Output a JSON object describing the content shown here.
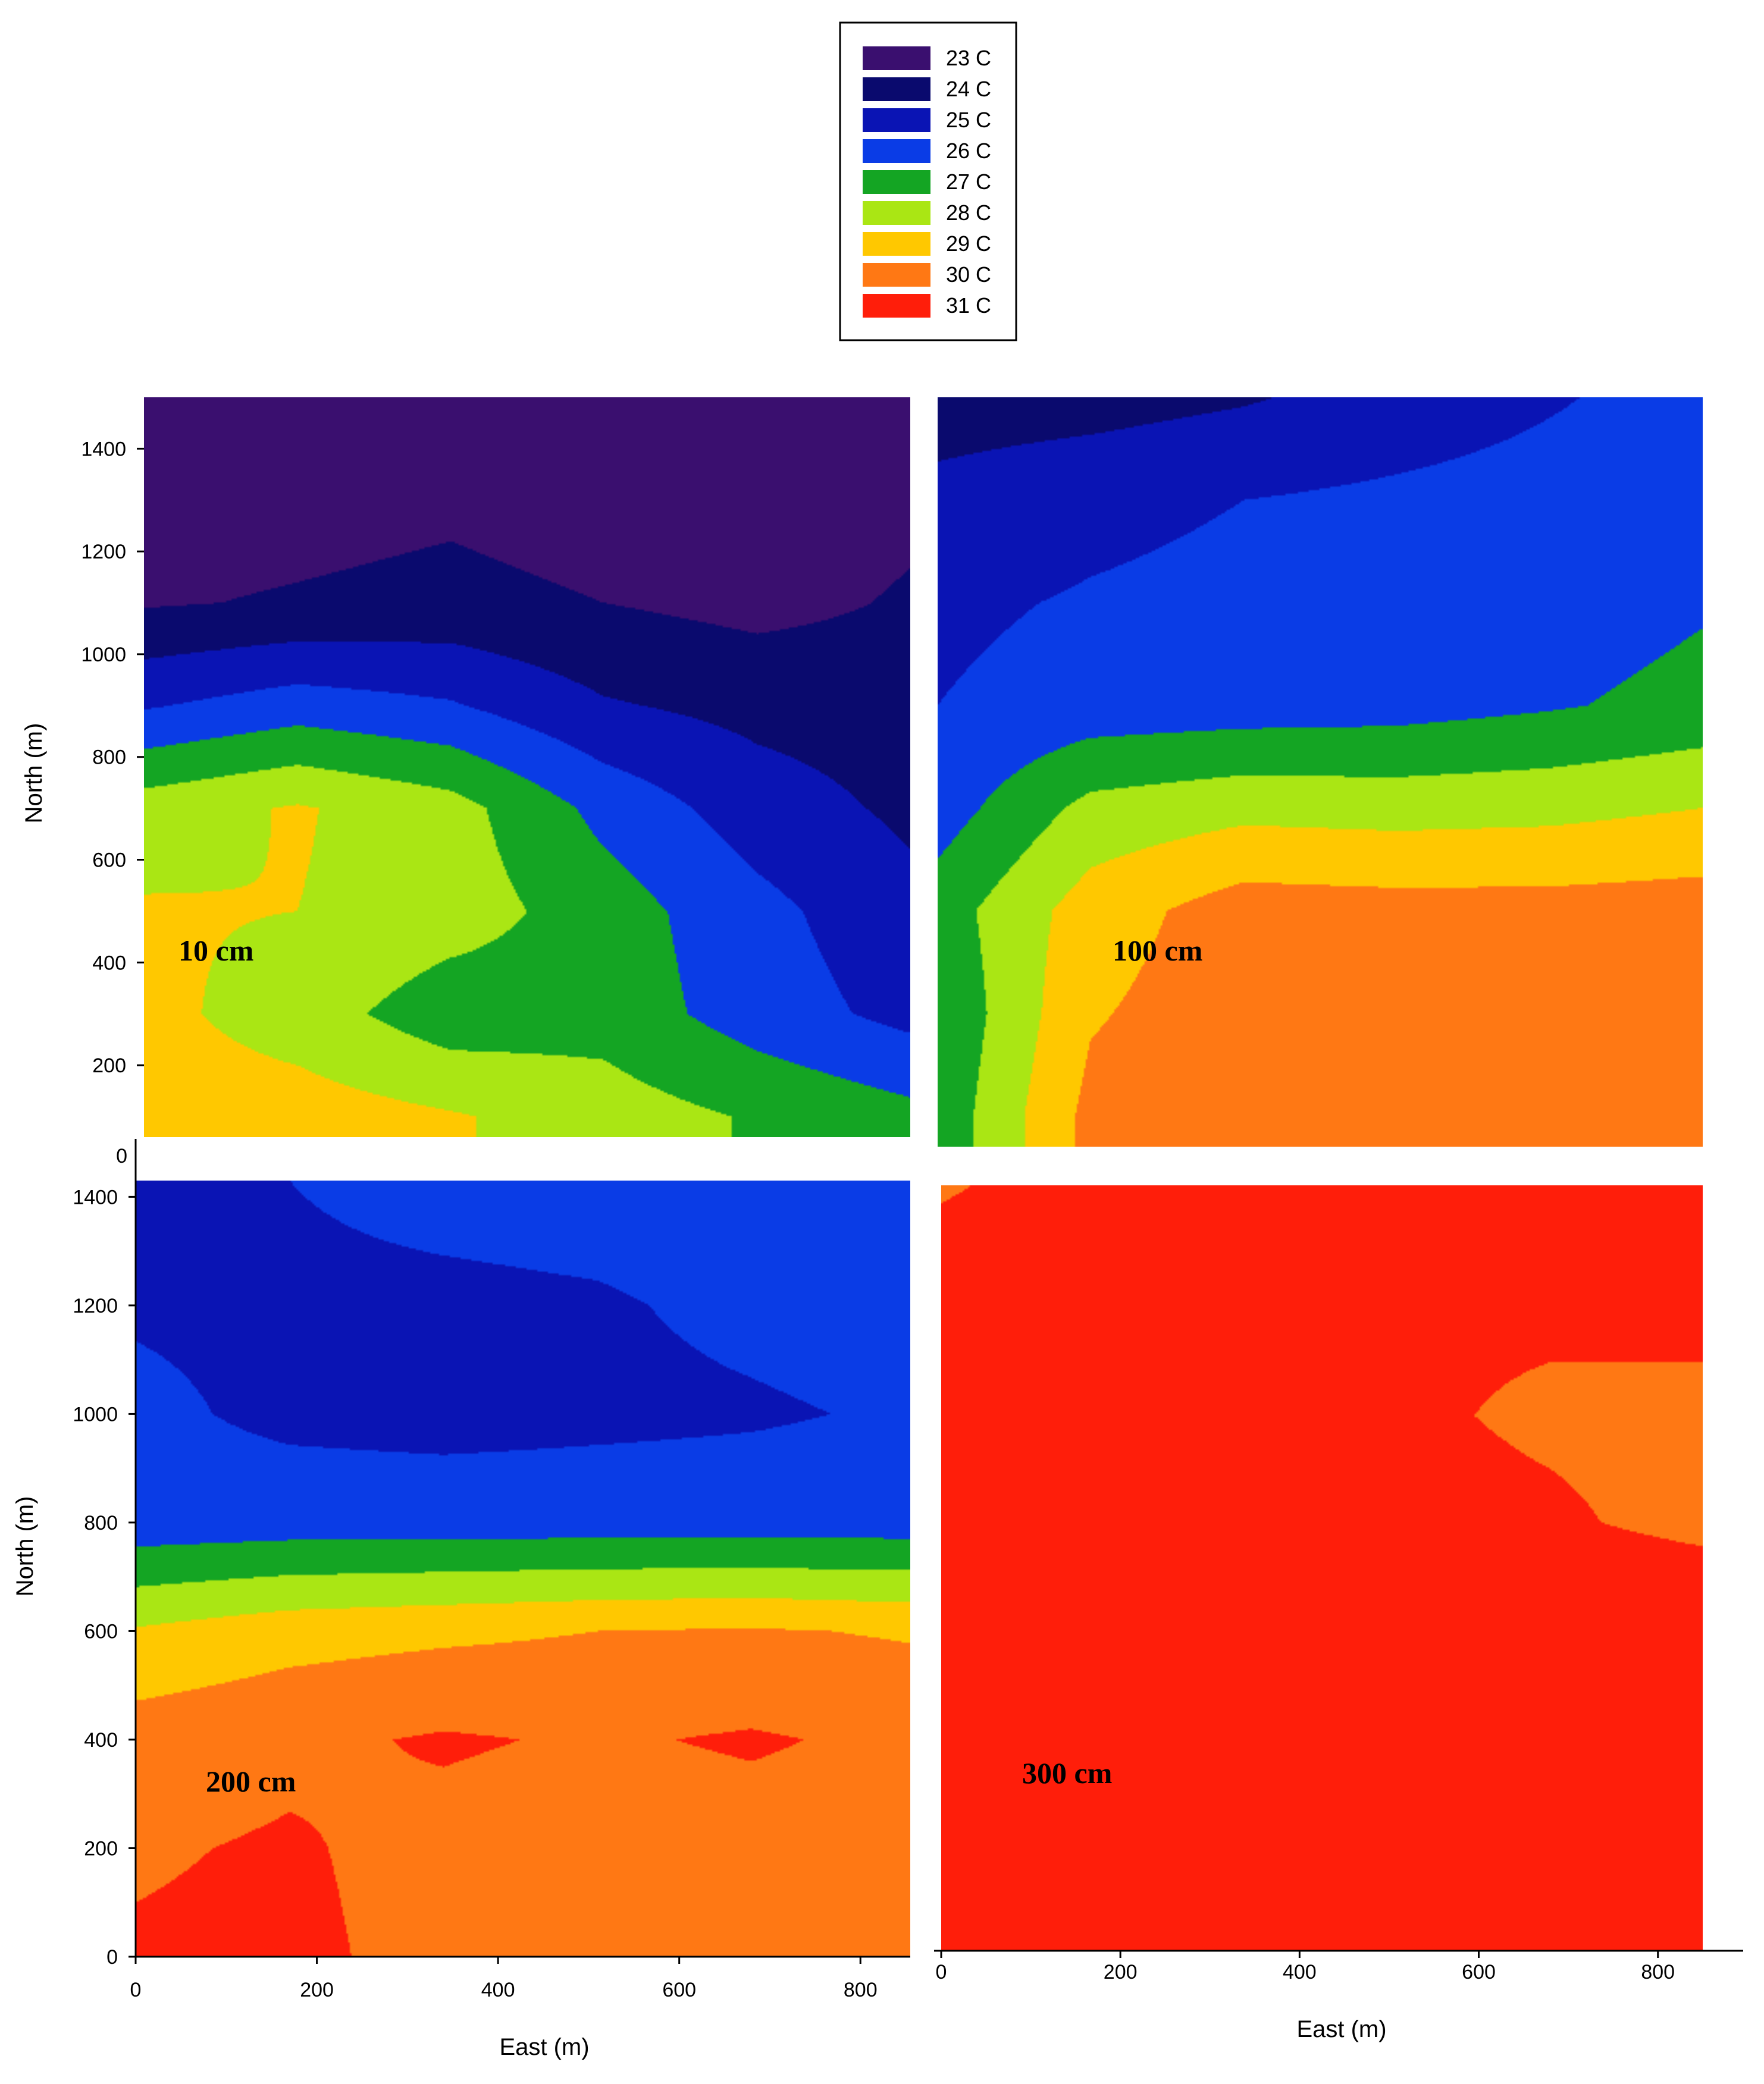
{
  "legend": {
    "placement": "top-center",
    "entries": [
      {
        "label": "23 C",
        "color": "#3a0f6f"
      },
      {
        "label": "24 C",
        "color": "#0a0a6e"
      },
      {
        "label": "25 C",
        "color": "#0a14b4"
      },
      {
        "label": "26 C",
        "color": "#0a3ce6"
      },
      {
        "label": "27 C",
        "color": "#14a523"
      },
      {
        "label": "28 C",
        "color": "#aae614"
      },
      {
        "label": "29 C",
        "color": "#ffc800"
      },
      {
        "label": "30 C",
        "color": "#ff7814"
      },
      {
        "label": "31 C",
        "color": "#ff1e0a"
      }
    ]
  },
  "chart_data": [
    {
      "type": "heatmap",
      "panel_label": "10 cm",
      "xlabel": "",
      "ylabel": "North (m)",
      "xlim": [
        0,
        850
      ],
      "ylim": [
        60,
        1500
      ],
      "xticks": [],
      "yticks": [
        200,
        400,
        600,
        800,
        1000,
        1200,
        1400
      ],
      "x": [
        0,
        170,
        340,
        510,
        680,
        850
      ],
      "y": [
        100,
        300,
        500,
        700,
        900,
        1100,
        1300,
        1500
      ],
      "z": [
        [
          29.0,
          29.0,
          28.6,
          28.0,
          27.4,
          26.8
        ],
        [
          28.8,
          28.0,
          26.9,
          27.1,
          26.0,
          25.2
        ],
        [
          28.6,
          28.5,
          28.0,
          27.0,
          25.8,
          24.8
        ],
        [
          28.0,
          28.6,
          27.9,
          26.2,
          25.0,
          24.3
        ],
        [
          25.4,
          26.0,
          25.6,
          24.6,
          24.2,
          24.0
        ],
        [
          23.4,
          23.6,
          23.8,
          23.5,
          23.2,
          23.6
        ],
        [
          23.0,
          23.1,
          23.3,
          23.0,
          23.0,
          23.3
        ],
        [
          22.9,
          22.9,
          23.0,
          22.9,
          22.9,
          23.1
        ]
      ]
    },
    {
      "type": "heatmap",
      "panel_label": "100 cm",
      "xlabel": "",
      "ylabel": "",
      "xlim": [
        0,
        850
      ],
      "ylim": [
        40,
        1500
      ],
      "xticks": [],
      "yticks": [],
      "x": [
        0,
        170,
        340,
        510,
        680,
        850
      ],
      "y": [
        100,
        300,
        500,
        700,
        900,
        1100,
        1300,
        1500
      ],
      "z": [
        [
          26.8,
          29.8,
          30.1,
          30.2,
          30.1,
          30.3
        ],
        [
          26.6,
          29.4,
          30.1,
          30.2,
          29.9,
          30.2
        ],
        [
          27.0,
          29.0,
          30.0,
          29.9,
          29.9,
          30.0
        ],
        [
          26.0,
          27.8,
          28.2,
          28.1,
          28.2,
          28.5
        ],
        [
          25.5,
          25.9,
          26.0,
          26.1,
          26.4,
          26.8
        ],
        [
          25.3,
          25.6,
          25.8,
          25.9,
          26.0,
          26.4
        ],
        [
          24.8,
          25.2,
          25.5,
          25.7,
          25.9,
          26.2
        ],
        [
          24.0,
          24.1,
          24.4,
          24.9,
          25.4,
          25.9
        ]
      ]
    },
    {
      "type": "heatmap",
      "panel_label": "200 cm",
      "xlabel": "East (m)",
      "ylabel": "North (m)",
      "xlim": [
        0,
        855
      ],
      "ylim": [
        0,
        1430
      ],
      "xticks": [
        0,
        200,
        400,
        600,
        800
      ],
      "yticks": [
        0,
        200,
        400,
        600,
        800,
        1000,
        1200,
        1400
      ],
      "x": [
        0,
        170,
        340,
        510,
        680,
        855
      ],
      "y": [
        0,
        200,
        400,
        600,
        800,
        1000,
        1200,
        1430
      ],
      "z": [
        [
          30.6,
          30.7,
          30.2,
          30.0,
          29.8,
          29.9
        ],
        [
          30.4,
          30.6,
          30.2,
          30.0,
          30.1,
          30.0
        ],
        [
          30.0,
          30.3,
          30.6,
          30.4,
          30.6,
          30.3
        ],
        [
          28.6,
          29.1,
          29.3,
          29.5,
          29.6,
          29.4
        ],
        [
          25.9,
          26.0,
          26.0,
          26.0,
          26.0,
          26.0
        ],
        [
          25.7,
          25.3,
          25.2,
          25.3,
          25.4,
          25.6
        ],
        [
          25.4,
          25.3,
          25.3,
          25.4,
          25.7,
          25.9
        ],
        [
          24.6,
          25.5,
          25.8,
          25.9,
          26.0,
          25.8
        ]
      ]
    },
    {
      "type": "heatmap",
      "panel_label": "300 cm",
      "xlabel": "East (m)",
      "ylabel": "",
      "xlim": [
        0,
        850
      ],
      "ylim": [
        0,
        1430
      ],
      "xticks": [
        0,
        200,
        400,
        600,
        800
      ],
      "yticks": [],
      "x": [
        0,
        170,
        340,
        510,
        680,
        850
      ],
      "y": [
        0,
        200,
        400,
        600,
        800,
        1000,
        1200,
        1430
      ],
      "z": [
        [
          31.0,
          31.1,
          30.8,
          30.7,
          30.8,
          30.7
        ],
        [
          31.0,
          30.6,
          30.6,
          30.7,
          31.0,
          30.8
        ],
        [
          31.1,
          31.0,
          30.8,
          30.8,
          31.0,
          31.1
        ],
        [
          31.2,
          31.2,
          31.2,
          31.2,
          31.2,
          31.2
        ],
        [
          31.2,
          31.1,
          31.1,
          30.7,
          30.6,
          30.3
        ],
        [
          31.2,
          31.1,
          31.1,
          30.6,
          30.4,
          30.3
        ],
        [
          31.1,
          31.1,
          31.1,
          30.6,
          30.6,
          30.7
        ],
        [
          30.4,
          30.9,
          31.1,
          30.8,
          30.7,
          30.8
        ]
      ]
    }
  ]
}
